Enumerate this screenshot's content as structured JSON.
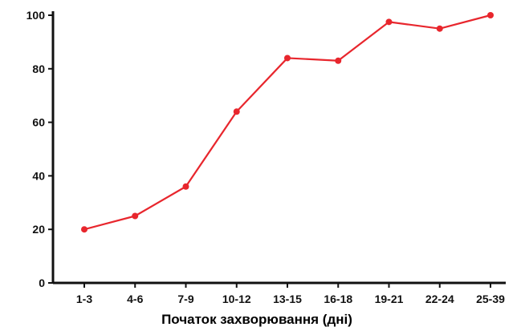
{
  "chart_data": {
    "type": "line",
    "title": "",
    "xlabel": "Початок захворювання (дні)",
    "ylabel": "",
    "categories": [
      "1-3",
      "4-6",
      "7-9",
      "10-12",
      "13-15",
      "16-18",
      "19-21",
      "22-24",
      "25-39"
    ],
    "series": [
      {
        "values": [
          20,
          25,
          36,
          64,
          84,
          83,
          97.5,
          95,
          100
        ],
        "color": "#e8262d"
      }
    ],
    "yticks": [
      "0",
      "20",
      "40",
      "60",
      "80",
      "100"
    ],
    "ylim": [
      0,
      100
    ],
    "grid": false,
    "legend": "none"
  }
}
